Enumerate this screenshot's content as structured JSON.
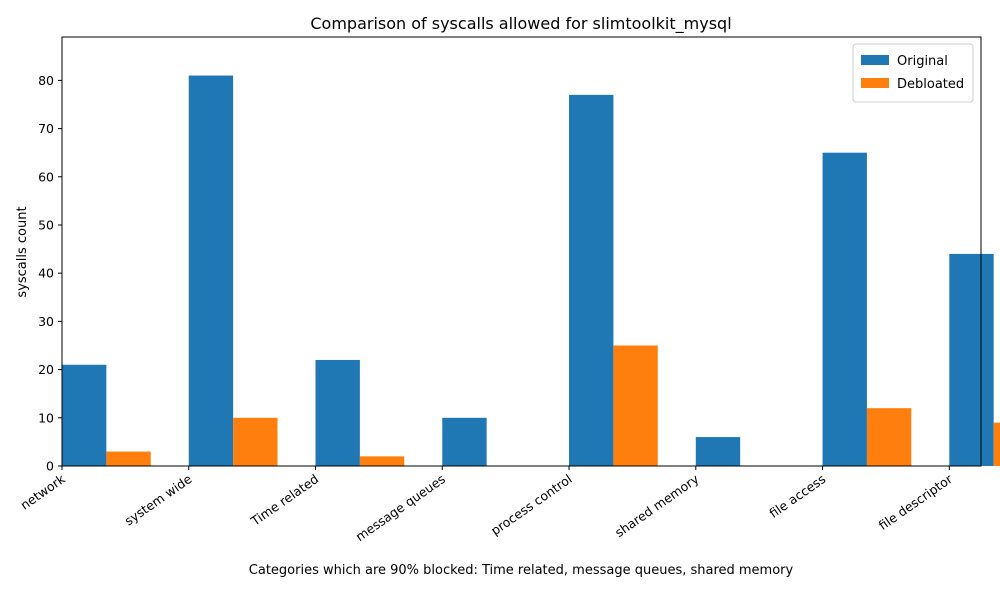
{
  "chart_data": {
    "type": "bar",
    "title": "Comparison of syscalls allowed for slimtoolkit_mysql",
    "xlabel": "Categories which are 90% blocked: Time related, message queues, shared memory",
    "ylabel": "syscalls count",
    "categories": [
      "network",
      "system wide",
      "Time related",
      "message queues",
      "process control",
      "shared memory",
      "file access",
      "file descriptor"
    ],
    "series": [
      {
        "name": "Original",
        "values": [
          21,
          81,
          22,
          10,
          77,
          6,
          65,
          44
        ],
        "color": "#1f77b4"
      },
      {
        "name": "Debloated",
        "values": [
          3,
          10,
          2,
          0,
          25,
          0,
          12,
          9
        ],
        "color": "#ff7f0e"
      }
    ],
    "ylim": [
      0,
      89
    ],
    "yticks": [
      0,
      10,
      20,
      30,
      40,
      50,
      60,
      70,
      80
    ],
    "grid": false,
    "legend_position": "top-right"
  }
}
